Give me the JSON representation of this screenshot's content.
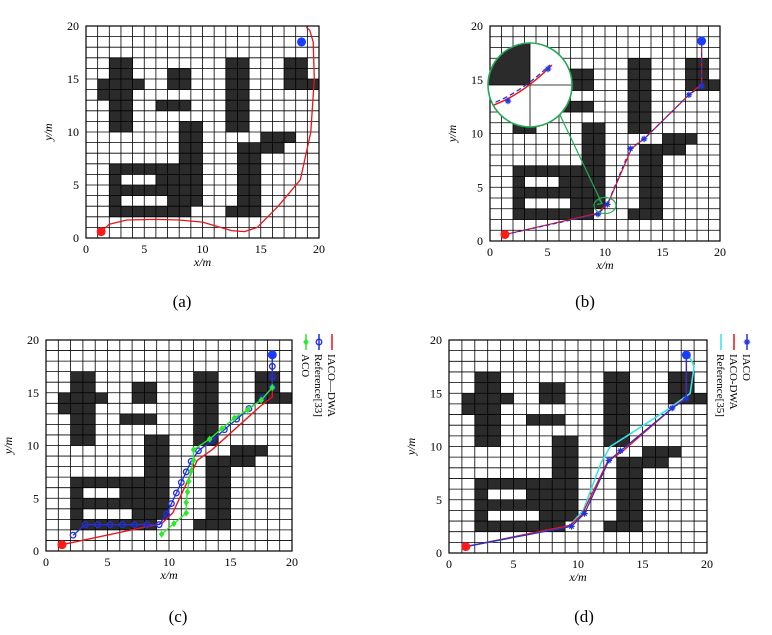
{
  "colors": {
    "obstacle": "#2b2b2b",
    "grid": "#000000",
    "start": "#ff1a1a",
    "goal": "#1a3cff",
    "iaco_dwa": "#e8141b",
    "reference33": "#1f2fe0",
    "aco": "#2ee82e",
    "reference35": "#39e1ee",
    "iaco": "#2232d8",
    "magnifier": "#22aa55"
  },
  "chart_data": [
    {
      "panel_label": "(a)",
      "type": "line",
      "xlabel": "x/m",
      "ylabel": "y/m",
      "xlim": [
        0,
        20
      ],
      "ylim": [
        0,
        20
      ],
      "xticks": [
        "0",
        "5",
        "10",
        "15",
        "20"
      ],
      "yticks": [
        "0",
        "5",
        "10",
        "15",
        "20"
      ],
      "grid": true,
      "start": [
        1.3,
        0.6
      ],
      "goal": [
        18.5,
        18.5
      ],
      "series": [
        {
          "style": "red-line",
          "points": [
            [
              1.3,
              0.6
            ],
            [
              2.0,
              1.3
            ],
            [
              3.5,
              1.7
            ],
            [
              6,
              1.75
            ],
            [
              8,
              1.7
            ],
            [
              10,
              1.5
            ],
            [
              12.5,
              0.7
            ],
            [
              13.6,
              0.6
            ],
            [
              14.7,
              1.0
            ],
            [
              16.5,
              3.0
            ],
            [
              18.4,
              5.5
            ],
            [
              18.8,
              7.5
            ],
            [
              19.3,
              10
            ],
            [
              19.6,
              15
            ],
            [
              19.5,
              18.5
            ],
            [
              19.2,
              19.6
            ],
            [
              18.9,
              19.9
            ]
          ]
        }
      ]
    },
    {
      "panel_label": "(b)",
      "type": "line",
      "xlabel": "x/m",
      "ylabel": "y/m",
      "xlim": [
        0,
        20
      ],
      "ylim": [
        0,
        20
      ],
      "xticks": [
        "0",
        "5",
        "10",
        "15",
        "20"
      ],
      "yticks": [
        "0",
        "5",
        "10",
        "15",
        "20"
      ],
      "grid": true,
      "start": [
        1.3,
        0.6
      ],
      "goal": [
        18.4,
        18.6
      ],
      "series": [
        {
          "style": "red-line",
          "points": [
            [
              1.3,
              0.6
            ],
            [
              9.4,
              2.6
            ],
            [
              10.3,
              3.6
            ],
            [
              12.3,
              8.6
            ],
            [
              13.5,
              9.6
            ],
            [
              17.4,
              13.7
            ],
            [
              18.4,
              14.6
            ],
            [
              18.4,
              18.6
            ]
          ]
        },
        {
          "style": "blue-dash-star",
          "points": [
            [
              1.3,
              0.6
            ],
            [
              9.4,
              2.5
            ],
            [
              10.2,
              3.4
            ],
            [
              12.2,
              8.6
            ],
            [
              13.4,
              9.5
            ],
            [
              17.3,
              13.6
            ],
            [
              18.4,
              14.4
            ],
            [
              18.4,
              18.6
            ]
          ]
        }
      ]
    },
    {
      "panel_label": "(c)",
      "type": "line",
      "xlabel": "x/m",
      "ylabel": "y/m",
      "xlim": [
        0,
        20
      ],
      "ylim": [
        0,
        20
      ],
      "xticks": [
        "0",
        "5",
        "10",
        "15",
        "20"
      ],
      "yticks": [
        "0",
        "5",
        "10",
        "15",
        "20"
      ],
      "grid": true,
      "legend": [
        "ACO",
        "Reference[33]",
        "IACO—DWA"
      ],
      "start": [
        1.3,
        0.6
      ],
      "goal": [
        18.4,
        18.6
      ],
      "series": [
        {
          "style": "iaco_dwa",
          "points": [
            [
              1.3,
              0.6
            ],
            [
              9.4,
              2.6
            ],
            [
              10.3,
              3.6
            ],
            [
              12.3,
              8.6
            ],
            [
              13.5,
              9.6
            ],
            [
              17.4,
              13.7
            ],
            [
              18.4,
              14.6
            ],
            [
              18.4,
              18.6
            ]
          ]
        },
        {
          "style": "reference33",
          "points": [
            [
              2.2,
              1.5
            ],
            [
              3.2,
              2.5
            ],
            [
              4.2,
              2.5
            ],
            [
              5.2,
              2.5
            ],
            [
              6.2,
              2.5
            ],
            [
              7.2,
              2.5
            ],
            [
              8.2,
              2.5
            ],
            [
              9.2,
              2.5
            ],
            [
              9.8,
              3.5
            ],
            [
              10.2,
              4.5
            ],
            [
              10.6,
              5.5
            ],
            [
              11,
              6.5
            ],
            [
              11.4,
              7.5
            ],
            [
              11.8,
              8.5
            ],
            [
              12.4,
              9.5
            ],
            [
              13.5,
              10.5
            ],
            [
              14.5,
              11.5
            ],
            [
              15.5,
              12.5
            ],
            [
              16.5,
              13.5
            ],
            [
              17.6,
              14.5
            ],
            [
              18.4,
              15.5
            ],
            [
              18.4,
              16.5
            ],
            [
              18.4,
              17.5
            ],
            [
              18.4,
              18.6
            ]
          ]
        },
        {
          "style": "aco",
          "points": [
            [
              9.4,
              1.6
            ],
            [
              10.4,
              2.6
            ],
            [
              11.4,
              3.6
            ],
            [
              11.4,
              4.6
            ],
            [
              11.5,
              5.6
            ],
            [
              11.6,
              6.6
            ],
            [
              11.8,
              7.6
            ],
            [
              12,
              8.6
            ],
            [
              12,
              9.6
            ],
            [
              13.3,
              10.6
            ],
            [
              14.3,
              11.6
            ],
            [
              15.3,
              12.6
            ],
            [
              16.4,
              13.4
            ],
            [
              17.5,
              14.3
            ],
            [
              18.4,
              15.5
            ]
          ]
        }
      ]
    },
    {
      "panel_label": "(d)",
      "type": "line",
      "xlabel": "x/m",
      "ylabel": "y/m",
      "xlim": [
        0,
        20
      ],
      "ylim": [
        0,
        20
      ],
      "xticks": [
        "0",
        "5",
        "10",
        "15",
        "20"
      ],
      "yticks": [
        "0",
        "5",
        "10",
        "15",
        "20"
      ],
      "grid": true,
      "legend": [
        "Reference[35]",
        "IACO-DWA",
        "IACO"
      ],
      "start": [
        1.3,
        0.6
      ],
      "goal": [
        18.4,
        18.6
      ],
      "series": [
        {
          "style": "reference35",
          "points": [
            [
              1.3,
              0.6
            ],
            [
              9.3,
              2.5
            ],
            [
              10.4,
              4.0
            ],
            [
              11.8,
              8.5
            ],
            [
              12.5,
              10
            ],
            [
              13.8,
              11
            ],
            [
              17,
              13.5
            ],
            [
              18.7,
              15
            ],
            [
              19.0,
              17.5
            ],
            [
              18.6,
              18.6
            ]
          ]
        },
        {
          "style": "iaco_dwa",
          "points": [
            [
              1.3,
              0.6
            ],
            [
              9.4,
              2.6
            ],
            [
              10.3,
              3.6
            ],
            [
              12.3,
              8.6
            ],
            [
              13.5,
              9.6
            ],
            [
              17.4,
              13.7
            ],
            [
              18.4,
              14.6
            ],
            [
              18.4,
              18.6
            ]
          ]
        },
        {
          "style": "iaco",
          "points": [
            [
              1.3,
              0.6
            ],
            [
              9.5,
              2.5
            ],
            [
              10.5,
              3.7
            ],
            [
              12.4,
              8.7
            ],
            [
              13.3,
              9.6
            ],
            [
              17.3,
              13.6
            ],
            [
              18.4,
              14.5
            ],
            [
              18.4,
              18.6
            ]
          ]
        }
      ]
    }
  ],
  "obstacles": [
    [
      [
        3,
        14
      ],
      [
        4,
        14
      ],
      [
        3,
        13
      ],
      [
        4,
        13
      ],
      [
        3,
        12
      ],
      [
        4,
        12
      ],
      [
        2,
        15
      ],
      [
        3,
        15
      ],
      [
        4,
        15
      ],
      [
        5,
        15
      ],
      [
        3,
        16
      ],
      [
        4,
        16
      ],
      [
        3,
        17
      ],
      [
        4,
        17
      ],
      [
        3,
        11
      ],
      [
        4,
        11
      ],
      [
        2,
        14
      ]
    ],
    [
      [
        8,
        15
      ],
      [
        9,
        15
      ],
      [
        8,
        16
      ],
      [
        9,
        16
      ],
      [
        7,
        13
      ],
      [
        8,
        13
      ],
      [
        9,
        13
      ]
    ],
    [
      [
        13,
        17
      ],
      [
        14,
        17
      ],
      [
        13,
        16
      ],
      [
        14,
        16
      ],
      [
        13,
        15
      ],
      [
        14,
        15
      ],
      [
        13,
        14
      ],
      [
        14,
        14
      ],
      [
        13,
        13
      ],
      [
        14,
        13
      ],
      [
        13,
        12
      ],
      [
        14,
        12
      ],
      [
        13,
        11
      ],
      [
        14,
        11
      ]
    ],
    [
      [
        18,
        17
      ],
      [
        19,
        17
      ],
      [
        18,
        16
      ],
      [
        19,
        16
      ],
      [
        18,
        15
      ],
      [
        19,
        15
      ],
      [
        20,
        15
      ]
    ],
    [
      [
        9,
        11
      ],
      [
        10,
        11
      ],
      [
        9,
        10
      ],
      [
        10,
        10
      ],
      [
        9,
        9
      ],
      [
        10,
        9
      ],
      [
        9,
        8
      ],
      [
        10,
        8
      ],
      [
        9,
        7
      ],
      [
        10,
        7
      ],
      [
        9,
        6
      ],
      [
        10,
        6
      ],
      [
        9,
        5
      ],
      [
        10,
        5
      ],
      [
        9,
        4
      ],
      [
        10,
        4
      ],
      [
        8,
        7
      ],
      [
        7,
        7
      ]
    ],
    [
      [
        3,
        7
      ],
      [
        4,
        7
      ],
      [
        5,
        7
      ],
      [
        6,
        7
      ],
      [
        7,
        6
      ],
      [
        3,
        5
      ],
      [
        4,
        5
      ],
      [
        5,
        5
      ],
      [
        6,
        5
      ],
      [
        7,
        5
      ],
      [
        8,
        5
      ],
      [
        3,
        3
      ],
      [
        4,
        3
      ],
      [
        5,
        3
      ],
      [
        6,
        3
      ],
      [
        7,
        3
      ],
      [
        8,
        3
      ],
      [
        9,
        3
      ],
      [
        8,
        6
      ],
      [
        3,
        6
      ],
      [
        8,
        4
      ],
      [
        3,
        4
      ]
    ],
    [
      [
        14,
        9
      ],
      [
        15,
        9
      ],
      [
        16,
        9
      ],
      [
        17,
        9
      ],
      [
        17,
        10
      ],
      [
        18,
        10
      ],
      [
        16,
        10
      ],
      [
        14,
        8
      ],
      [
        15,
        8
      ],
      [
        14,
        7
      ],
      [
        15,
        7
      ],
      [
        14,
        6
      ],
      [
        15,
        6
      ],
      [
        14,
        5
      ],
      [
        15,
        5
      ],
      [
        14,
        4
      ],
      [
        15,
        4
      ],
      [
        13,
        3
      ],
      [
        14,
        3
      ],
      [
        15,
        3
      ]
    ]
  ]
}
